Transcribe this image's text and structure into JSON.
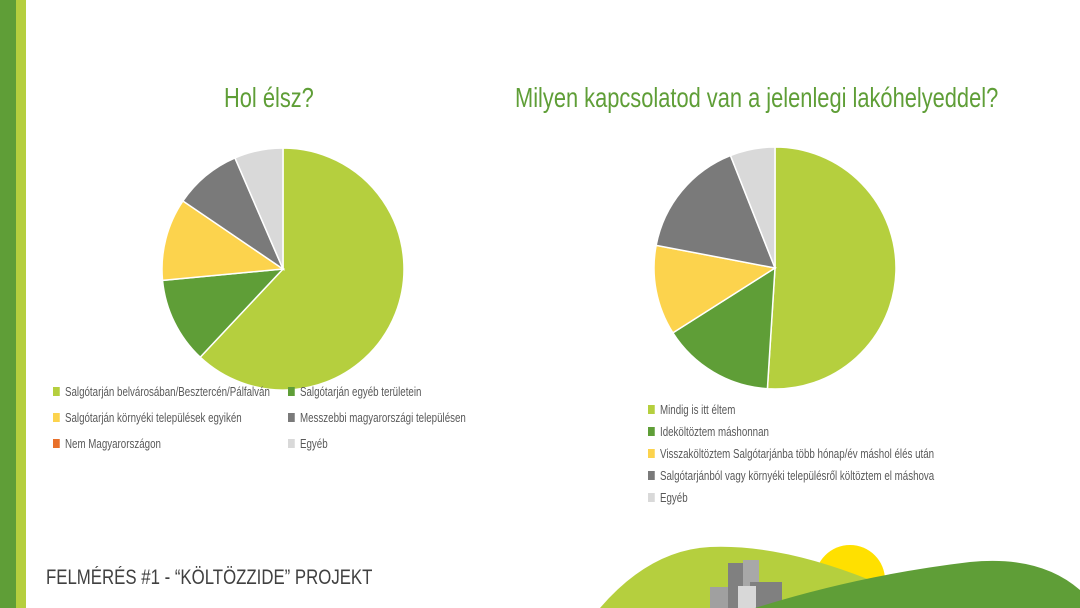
{
  "footer": "FELMÉRÉS #1 - “KÖLTÖZZIDE” PROJEKT",
  "chart_data": [
    {
      "type": "pie",
      "title": "Hol élsz?",
      "categories": [
        "Salgótarján belvárosában/Besztercén/Pálfalván",
        "Salgótarján egyéb területein",
        "Salgótarján környéki települések egyikén",
        "Messzebbi magyarországi településen",
        "Nem Magyarországon",
        "Egyéb"
      ],
      "values": [
        62,
        11.5,
        11,
        9,
        0,
        6.5
      ],
      "colors": [
        "#b5cf3e",
        "#5f9e37",
        "#fcd34d",
        "#7a7a7a",
        "#e8702a",
        "#d9d9d9"
      ],
      "legend_position": "bottom"
    },
    {
      "type": "pie",
      "title": "Milyen kapcsolatod van a jelenlegi lakóhelyeddel?",
      "categories": [
        "Mindig is itt éltem",
        "Ideköltöztem máshonnan",
        "Visszaköltöztem Salgótarjánba több hónap/év máshol élés után",
        "Salgótarjánból vagy környéki településről költöztem el máshova",
        "Egyéb"
      ],
      "values": [
        51,
        15,
        12,
        16,
        6
      ],
      "colors": [
        "#b5cf3e",
        "#5f9e37",
        "#fcd34d",
        "#7a7a7a",
        "#d9d9d9"
      ],
      "legend_position": "bottom"
    }
  ]
}
